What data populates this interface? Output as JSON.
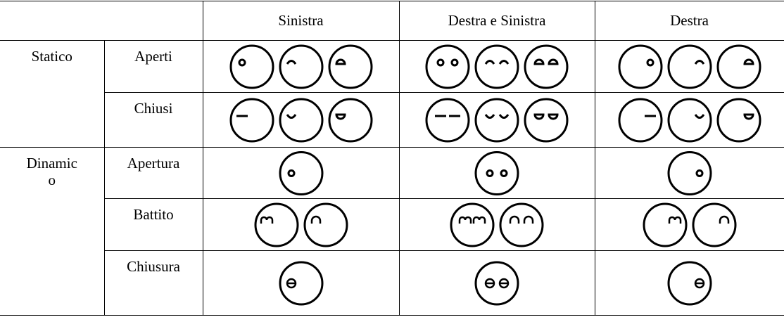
{
  "table": {
    "columns": [
      "Sinistra",
      "Destra e Sinistra",
      "Destra"
    ],
    "groups": [
      {
        "label": "Statico",
        "rows": [
          "Aperti",
          "Chiusi"
        ]
      },
      {
        "label": "Dinamico",
        "rows": [
          "Apertura",
          "Battito",
          "Chiusura"
        ]
      }
    ]
  }
}
